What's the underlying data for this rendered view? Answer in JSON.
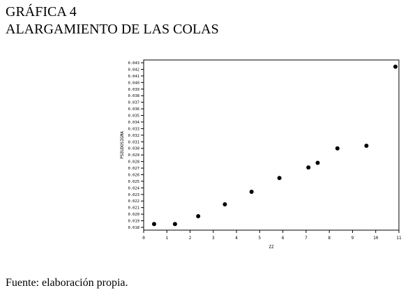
{
  "header": {
    "title": "GRÁFICA 4",
    "subtitle": "ALARGAMIENTO DE LAS COLAS"
  },
  "footer": {
    "source": "Fuente: elaboración propia."
  },
  "chart_data": {
    "type": "scatter",
    "xlabel": "ZZ",
    "ylabel": "PSEUDOSIGMA",
    "xlim": [
      0,
      11
    ],
    "ylim": [
      0.018,
      0.043
    ],
    "xticks": [
      "0",
      "1",
      "2",
      "3",
      "4",
      "5",
      "6",
      "7",
      "8",
      "9",
      "10",
      "11"
    ],
    "yticks": [
      "0.018",
      "0.019",
      "0.020",
      "0.021",
      "0.022",
      "0.023",
      "0.024",
      "0.025",
      "0.026",
      "0.027",
      "0.028",
      "0.029",
      "0.030",
      "0.031",
      "0.032",
      "0.033",
      "0.034",
      "0.035",
      "0.036",
      "0.037",
      "0.038",
      "0.039",
      "0.040",
      "0.041",
      "0.042",
      "0.043"
    ],
    "points": [
      {
        "x": 0.45,
        "y": 0.0185
      },
      {
        "x": 1.35,
        "y": 0.0185
      },
      {
        "x": 2.35,
        "y": 0.0197
      },
      {
        "x": 3.5,
        "y": 0.0215
      },
      {
        "x": 4.65,
        "y": 0.0234
      },
      {
        "x": 5.85,
        "y": 0.0255
      },
      {
        "x": 7.1,
        "y": 0.0271
      },
      {
        "x": 7.5,
        "y": 0.0278
      },
      {
        "x": 8.35,
        "y": 0.03
      },
      {
        "x": 9.6,
        "y": 0.0304
      },
      {
        "x": 10.85,
        "y": 0.0424
      }
    ],
    "grid": false,
    "marker_color": "#000000"
  }
}
